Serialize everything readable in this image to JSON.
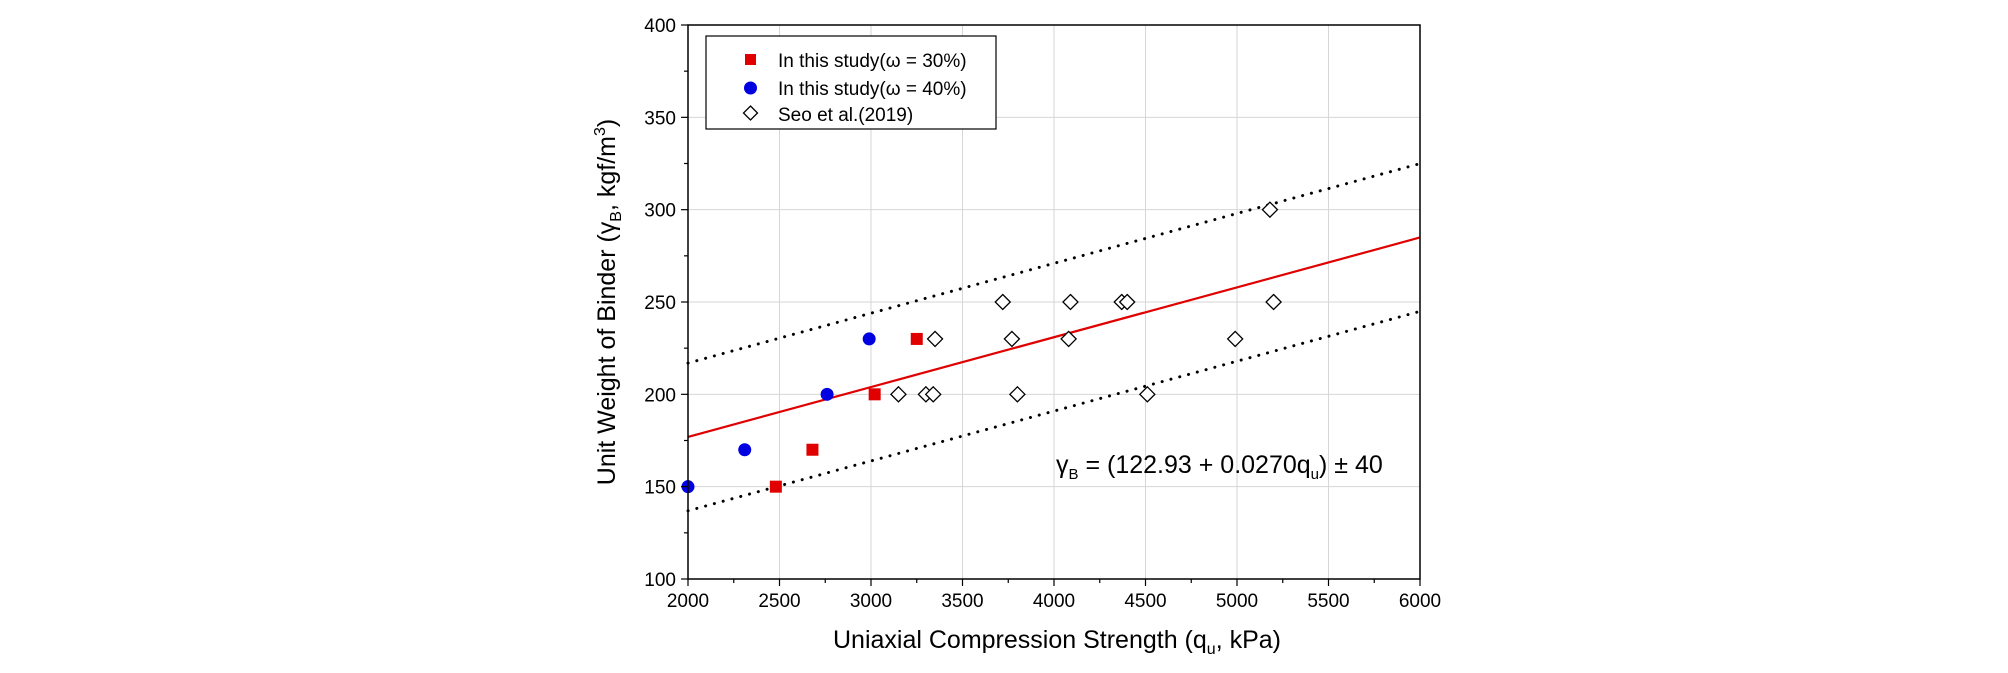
{
  "chart_data": {
    "type": "scatter",
    "title": "",
    "xlabel": {
      "prefix": "Uniaxial Compression Strength (q",
      "sub": "u",
      "suffix": ", kPa)"
    },
    "ylabel": {
      "prefix": "Unit Weight of Binder (γ",
      "sub": "B",
      "mid": ", kgf/m",
      "sup": "3",
      "suffix": ")"
    },
    "xlim": [
      2000,
      6000
    ],
    "ylim": [
      100,
      400
    ],
    "xticks": [
      2000,
      2500,
      3000,
      3500,
      4000,
      4500,
      5000,
      5500,
      6000
    ],
    "yticks": [
      100,
      150,
      200,
      250,
      300,
      350,
      400
    ],
    "xtick_labels": [
      "2000",
      "2500",
      "3000",
      "3500",
      "4000",
      "4500",
      "5000",
      "5500",
      "6000"
    ],
    "ytick_labels": [
      "100",
      "150",
      "200",
      "250",
      "300",
      "350",
      "400"
    ],
    "grid": true,
    "legend_position": "top-left",
    "series": [
      {
        "name": "In this study(ω = 30%)",
        "marker": "square",
        "color": "#e00000",
        "points": [
          [
            2480,
            150
          ],
          [
            2680,
            170
          ],
          [
            3020,
            200
          ],
          [
            3250,
            230
          ]
        ]
      },
      {
        "name": "In this study(ω = 40%)",
        "marker": "circle",
        "color": "#0000e0",
        "points": [
          [
            2000,
            150
          ],
          [
            2310,
            170
          ],
          [
            2760,
            200
          ],
          [
            2990,
            230
          ]
        ]
      },
      {
        "name": "Seo et al.(2019)",
        "marker": "diamond-open",
        "color": "#000000",
        "points": [
          [
            3150,
            200
          ],
          [
            3300,
            200
          ],
          [
            3340,
            200
          ],
          [
            3350,
            230
          ],
          [
            3720,
            250
          ],
          [
            3770,
            230
          ],
          [
            3800,
            200
          ],
          [
            4080,
            230
          ],
          [
            4090,
            250
          ],
          [
            4370,
            250
          ],
          [
            4400,
            250
          ],
          [
            4510,
            200
          ],
          [
            4990,
            230
          ],
          [
            5180,
            300
          ],
          [
            5200,
            250
          ]
        ]
      }
    ],
    "fit_line": {
      "intercept": 122.93,
      "slope": 0.027,
      "band": 40,
      "color": "#e00000"
    },
    "equation": {
      "lhs": "γ",
      "lhs_sub": "B",
      "body": " = (122.93  + 0.0270q",
      "body_sub": "u",
      "tail": ") ± 40"
    }
  }
}
